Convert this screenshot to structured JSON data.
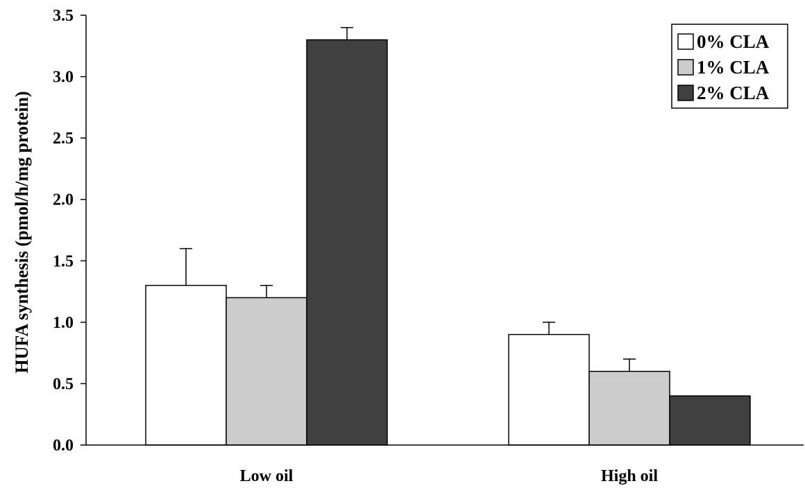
{
  "chart_data": {
    "type": "bar",
    "title": "",
    "xlabel": "",
    "ylabel": "HUFA synthesis (pmol/h/mg protein)",
    "categories": [
      "Low oil",
      "High oil"
    ],
    "ylim": [
      0,
      3.5
    ],
    "yticks": [
      "0.0",
      "0.5",
      "1.0",
      "1.5",
      "2.0",
      "2.5",
      "3.0",
      "3.5"
    ],
    "grid": false,
    "legend_position": "top-right",
    "series": [
      {
        "name": "0% CLA",
        "color": "#ffffff",
        "values": [
          1.3,
          0.9
        ],
        "errors": [
          0.3,
          0.1
        ]
      },
      {
        "name": "1% CLA",
        "color": "#cccccc",
        "values": [
          1.2,
          0.6
        ],
        "errors": [
          0.1,
          0.1
        ]
      },
      {
        "name": "2% CLA",
        "color": "#404040",
        "values": [
          3.3,
          0.4
        ],
        "errors": [
          0.1,
          0.0
        ]
      }
    ]
  }
}
